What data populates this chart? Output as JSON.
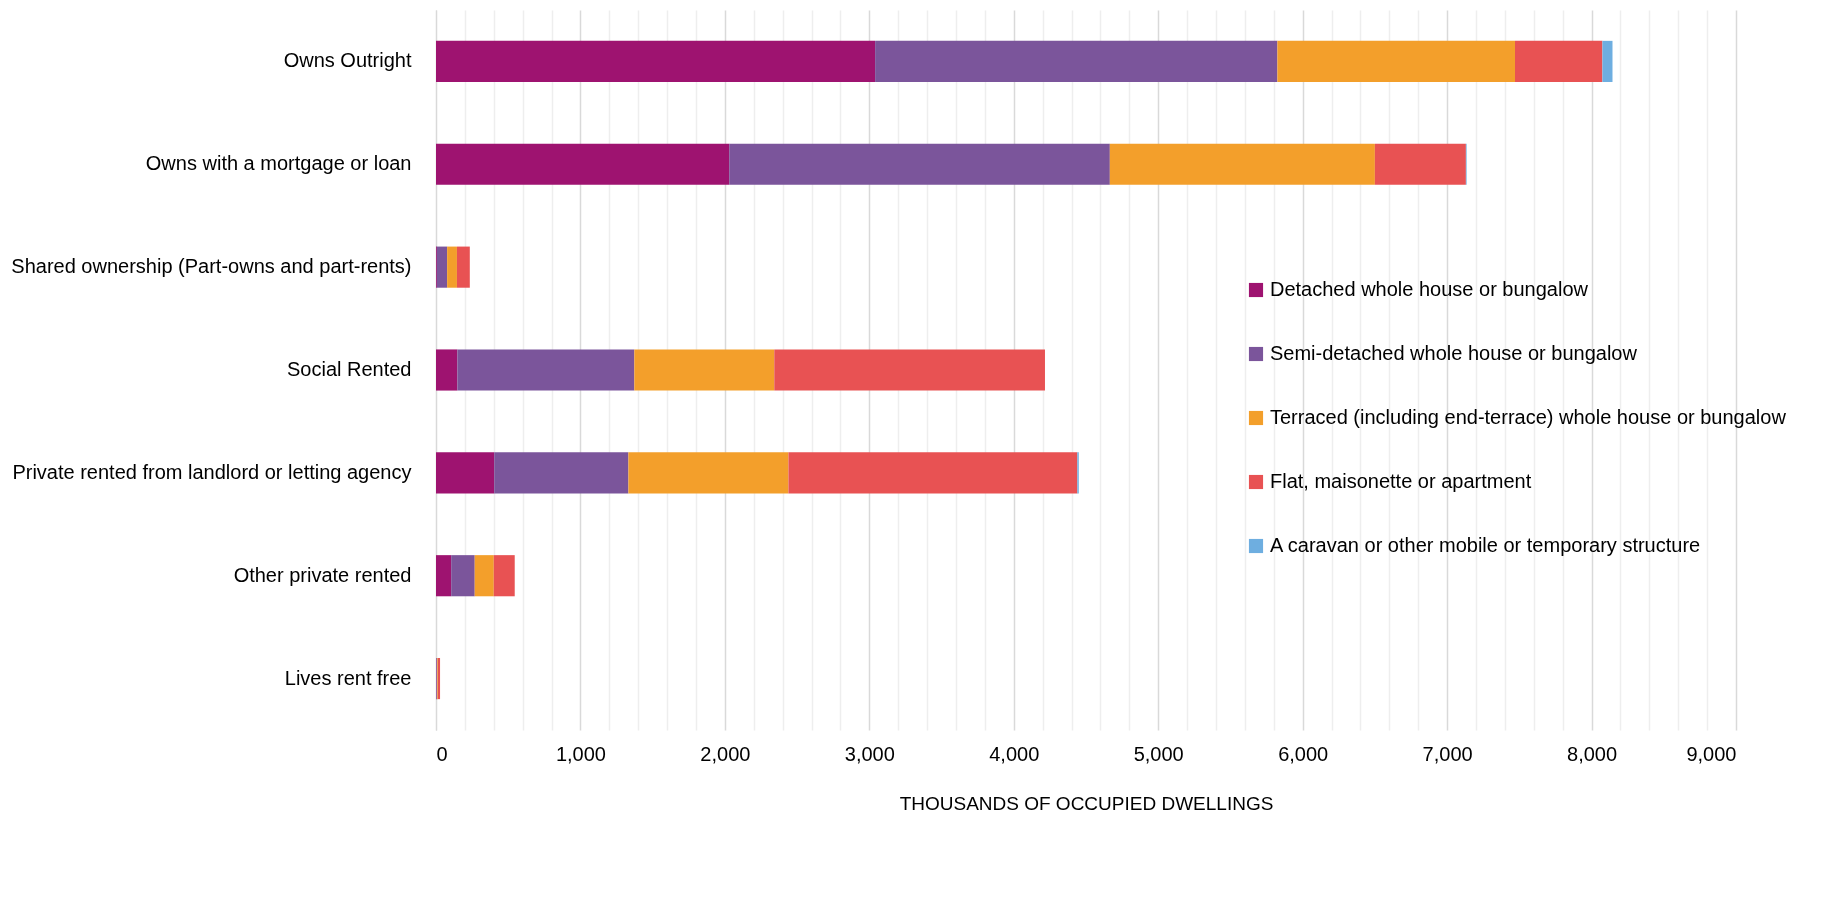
{
  "chart_data": {
    "type": "bar",
    "orientation": "horizontal",
    "stacked": true,
    "categories": [
      "Owns Outright",
      "Owns with a mortgage or loan",
      "Shared ownership (Part-owns and part-rents)",
      "Social Rented",
      "Private rented from landlord or letting agency",
      "Other private rented",
      "Lives rent free"
    ],
    "series": [
      {
        "name": "Detached whole house or bungalow",
        "color": "#9e1370",
        "values": [
          3040,
          2030,
          6,
          148,
          403,
          105,
          3
        ]
      },
      {
        "name": "Semi-detached whole house or bungalow",
        "color": "#7b559b",
        "values": [
          2785,
          2635,
          71,
          1225,
          929,
          163,
          5
        ]
      },
      {
        "name": "Terraced (including end-terrace) whole house or bungalow",
        "color": "#f39f2b",
        "values": [
          1645,
          1835,
          68,
          969,
          1108,
          132,
          5
        ]
      },
      {
        "name": "Flat, maisonette or apartment",
        "color": "#e85253",
        "values": [
          605,
          630,
          89,
          1874,
          2000,
          145,
          15
        ]
      },
      {
        "name": "A caravan or other mobile or temporary structure",
        "color": "#6eaee0",
        "values": [
          70,
          5,
          null,
          null,
          10,
          null,
          null
        ]
      }
    ],
    "xlabel": "THOUSANDS OF OCCUPIED DWELLINGS",
    "xlim": [
      0,
      9000
    ],
    "xticks": [
      0,
      {
        "value": 200,
        "label": null
      },
      {
        "value": 400,
        "label": null
      },
      {
        "value": 600,
        "label": null
      },
      {
        "value": 800,
        "label": null
      },
      {
        "value": 1000,
        "label": "1,000"
      },
      {
        "value": 1200,
        "label": null
      },
      {
        "value": 1400,
        "label": null
      },
      {
        "value": 1600,
        "label": null
      },
      {
        "value": 1800,
        "label": null
      },
      {
        "value": 2000,
        "label": "2,000"
      },
      {
        "value": 2200,
        "label": null
      },
      {
        "value": 2400,
        "label": null
      },
      {
        "value": 2600,
        "label": null
      },
      {
        "value": 2800,
        "label": null
      },
      {
        "value": 3000,
        "label": "3,000"
      },
      {
        "value": 3200,
        "label": null
      },
      {
        "value": 3400,
        "label": null
      },
      {
        "value": 3600,
        "label": null
      },
      {
        "value": 3800,
        "label": null
      },
      {
        "value": 4000,
        "label": "4,000"
      },
      {
        "value": 4200,
        "label": null
      },
      {
        "value": 4400,
        "label": null
      },
      {
        "value": 4600,
        "label": null
      },
      {
        "value": 4800,
        "label": null
      },
      {
        "value": 5000,
        "label": "5,000"
      },
      {
        "value": 5200,
        "label": null
      },
      {
        "value": 5400,
        "label": null
      },
      {
        "value": 5600,
        "label": null
      },
      {
        "value": 5800,
        "label": null
      },
      {
        "value": 6000,
        "label": "6,000"
      },
      {
        "value": 6200,
        "label": null
      },
      {
        "value": 6400,
        "label": null
      },
      {
        "value": 6600,
        "label": null
      },
      {
        "value": 6800,
        "label": null
      },
      {
        "value": 7000,
        "label": "7,000"
      },
      {
        "value": 7200,
        "label": null
      },
      {
        "value": 7400,
        "label": null
      },
      {
        "value": 7600,
        "label": null
      },
      {
        "value": 7800,
        "label": null
      },
      {
        "value": 8000,
        "label": "8,000"
      },
      {
        "value": 8200,
        "label": null
      },
      {
        "value": 8400,
        "label": null
      },
      {
        "value": 8600,
        "label": null
      },
      {
        "value": 8800,
        "label": null
      },
      {
        "value": 9000,
        "label": "9,000"
      }
    ],
    "grid": "x",
    "legend": "right"
  }
}
